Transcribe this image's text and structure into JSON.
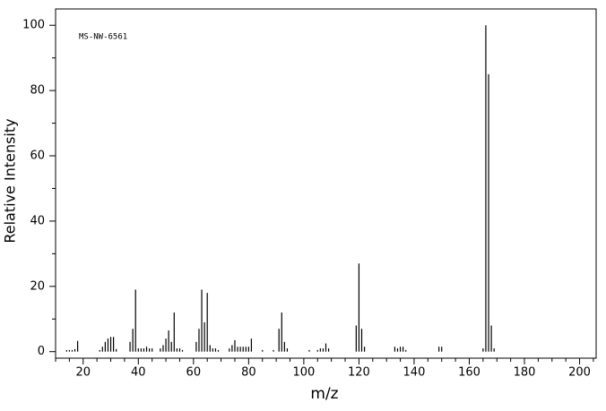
{
  "chart_data": {
    "type": "bar",
    "annotation": "MS-NW-6561",
    "x_label": "m/z",
    "y_label": "Relative Intensity",
    "color": "#000000",
    "xlim": [
      10,
      206
    ],
    "ylim": [
      -2,
      105
    ],
    "xticks": [
      20,
      40,
      60,
      80,
      100,
      120,
      140,
      160,
      180,
      200
    ],
    "minor_xticks": [
      10,
      15,
      25,
      30,
      35,
      45,
      50,
      55,
      65,
      70,
      75,
      85,
      90,
      95,
      105,
      110,
      115,
      125,
      130,
      135,
      145,
      150,
      155,
      165,
      170,
      175,
      185,
      190,
      195,
      205
    ],
    "yticks": [
      0,
      20,
      40,
      60,
      80,
      100
    ],
    "minor_yticks": [
      10,
      30,
      50,
      70,
      90
    ],
    "x": [
      14,
      15,
      16,
      17,
      18,
      26,
      27,
      28,
      29,
      30,
      31,
      32,
      37,
      38,
      39,
      40,
      41,
      42,
      43,
      44,
      45,
      48,
      49,
      50,
      51,
      52,
      53,
      54,
      55,
      56,
      61,
      62,
      63,
      64,
      65,
      66,
      67,
      68,
      69,
      73,
      74,
      75,
      76,
      77,
      78,
      79,
      80,
      81,
      85,
      89,
      91,
      92,
      93,
      94,
      102,
      105,
      106,
      107,
      108,
      109,
      119,
      120,
      121,
      122,
      133,
      134,
      135,
      136,
      137,
      149,
      150,
      165,
      166,
      167,
      168,
      169
    ],
    "values": [
      0.5,
      0.5,
      0.5,
      0.8,
      3.3,
      0.5,
      1.5,
      3,
      4,
      4.5,
      4.5,
      0.8,
      3,
      7,
      19,
      1,
      1,
      1,
      1.5,
      1,
      1,
      1,
      2,
      4,
      6.5,
      3,
      12,
      1,
      1,
      0.5,
      3,
      7,
      19,
      9,
      18,
      2,
      1,
      1,
      0.5,
      1,
      2,
      3.5,
      1.5,
      1.5,
      1.5,
      1.5,
      1.5,
      4,
      0.5,
      0.5,
      7,
      12,
      3,
      1,
      0.5,
      0.5,
      1,
      1,
      2.5,
      1,
      8,
      27,
      7,
      1.5,
      1.5,
      1,
      1.5,
      1.5,
      0.5,
      1.5,
      1.5,
      1,
      100,
      85,
      8,
      1
    ]
  }
}
